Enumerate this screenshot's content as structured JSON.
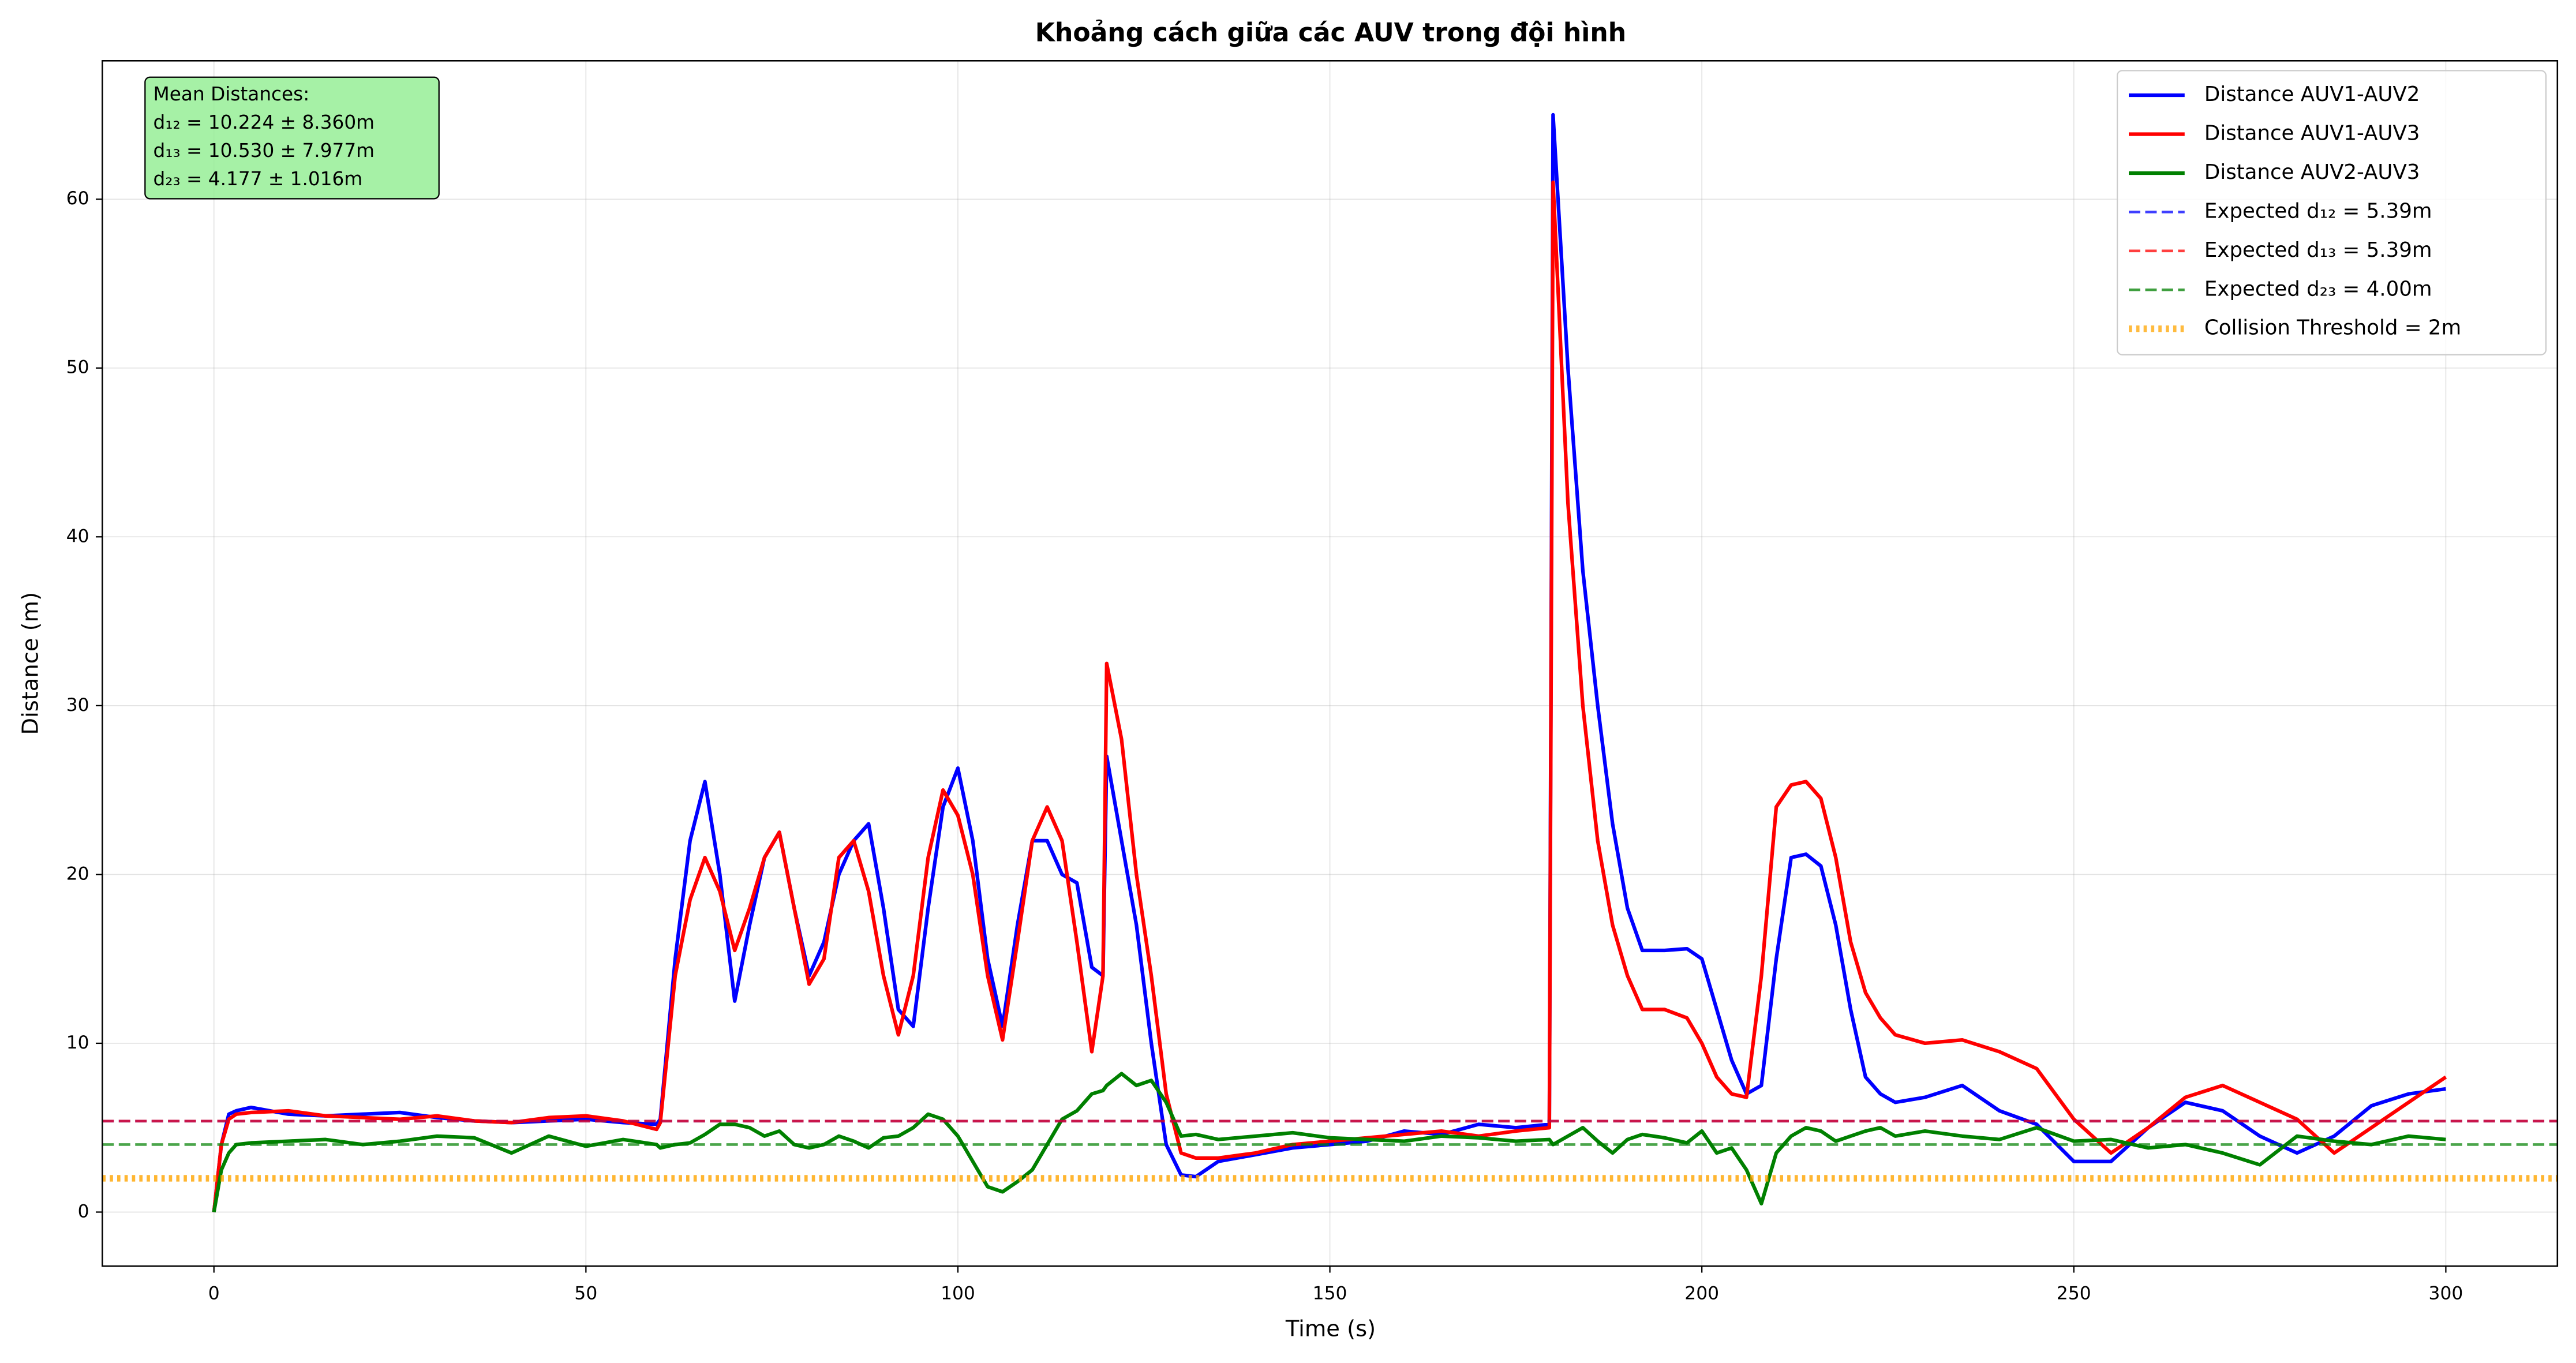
{
  "chart_data": {
    "type": "line",
    "title": "Khoảng cách giữa các AUV trong đội hình",
    "x_label": "Time (s)",
    "y_label": "Distance (m)",
    "xlim": [
      -15,
      315
    ],
    "ylim": [
      -3.2,
      68.2
    ],
    "xticks": [
      0,
      50,
      100,
      150,
      200,
      250,
      300
    ],
    "yticks": [
      0,
      10,
      20,
      30,
      40,
      50,
      60
    ],
    "grid": true,
    "legend_position": "upper-right",
    "annotation": [
      "Mean Distances:",
      "d₁₂ = 10.224 ± 8.360m",
      "d₁₃ = 10.530 ± 7.977m",
      "d₂₃ = 4.177 ± 1.016m"
    ],
    "x": [
      0,
      1,
      2,
      3,
      5,
      10,
      15,
      20,
      25,
      30,
      35,
      40,
      45,
      50,
      55,
      59.5,
      60,
      62,
      64,
      66,
      68,
      70,
      72,
      74,
      76,
      78,
      80,
      82,
      84,
      86,
      88,
      90,
      92,
      94,
      96,
      98,
      100,
      102,
      104,
      106,
      108,
      110,
      112,
      114,
      116,
      118,
      119.5,
      120,
      122,
      124,
      126,
      128,
      130,
      132,
      135,
      140,
      145,
      150,
      155,
      160,
      165,
      170,
      175,
      179.5,
      180,
      182,
      184,
      186,
      188,
      190,
      192,
      195,
      198,
      200,
      202,
      204,
      206,
      208,
      210,
      212,
      214,
      216,
      218,
      220,
      222,
      224,
      226,
      230,
      235,
      240,
      245,
      250,
      255,
      260,
      265,
      270,
      275,
      280,
      285,
      290,
      295,
      300
    ],
    "series": [
      {
        "name": "Distance AUV1-AUV2",
        "color": "#0000ff",
        "values": [
          0,
          4,
          5.8,
          6,
          6.2,
          5.8,
          5.7,
          5.8,
          5.9,
          5.6,
          5.4,
          5.3,
          5.4,
          5.5,
          5.3,
          5.2,
          5.5,
          15,
          22,
          25.5,
          20,
          12.5,
          17,
          21,
          22.5,
          18,
          14,
          16,
          20,
          22,
          23,
          18,
          12,
          11,
          18,
          24,
          26.3,
          22,
          15,
          11,
          17,
          22,
          22,
          20,
          19.5,
          14.5,
          14,
          27,
          22,
          17,
          10,
          4,
          2.2,
          2.1,
          3,
          3.4,
          3.8,
          4,
          4.2,
          4.8,
          4.6,
          5.2,
          5,
          5.2,
          65,
          50,
          38,
          30,
          23,
          18,
          15.5,
          15.5,
          15.6,
          15,
          12,
          9,
          7,
          7.5,
          15,
          21,
          21.2,
          20.5,
          17,
          12,
          8,
          7,
          6.5,
          6.8,
          7.5,
          6,
          5.2,
          3,
          3,
          5,
          6.5,
          6,
          4.5,
          3.5,
          4.5,
          6.3,
          7,
          7.3
        ]
      },
      {
        "name": "Distance AUV1-AUV3",
        "color": "#ff0000",
        "values": [
          0,
          4,
          5.5,
          5.8,
          5.9,
          6,
          5.7,
          5.6,
          5.5,
          5.7,
          5.4,
          5.3,
          5.6,
          5.7,
          5.4,
          4.9,
          5.3,
          14,
          18.5,
          21,
          19,
          15.5,
          18,
          21,
          22.5,
          18,
          13.5,
          15,
          21,
          22,
          19,
          14,
          10.5,
          14,
          21,
          25,
          23.5,
          20,
          14,
          10.2,
          16,
          22,
          24,
          22,
          16,
          9.5,
          14,
          32.5,
          28,
          20,
          14,
          7,
          3.5,
          3.2,
          3.2,
          3.5,
          4,
          4.2,
          4.4,
          4.6,
          4.8,
          4.5,
          4.8,
          5,
          61,
          42,
          30,
          22,
          17,
          14,
          12,
          12,
          11.5,
          10,
          8,
          7,
          6.8,
          14,
          24,
          25.3,
          25.5,
          24.5,
          21,
          16,
          13,
          11.5,
          10.5,
          10,
          10.2,
          9.5,
          8.5,
          5.5,
          3.5,
          5,
          6.8,
          7.5,
          6.5,
          5.5,
          3.5,
          5,
          6.5,
          8
        ]
      },
      {
        "name": "Distance AUV2-AUV3",
        "color": "#008000",
        "values": [
          0,
          2.5,
          3.5,
          4,
          4.1,
          4.2,
          4.3,
          4,
          4.2,
          4.5,
          4.4,
          3.5,
          4.5,
          3.9,
          4.3,
          4,
          3.8,
          4,
          4.1,
          4.6,
          5.2,
          5.2,
          5,
          4.5,
          4.8,
          4,
          3.8,
          4,
          4.5,
          4.2,
          3.8,
          4.4,
          4.5,
          5,
          5.8,
          5.5,
          4.5,
          3,
          1.5,
          1.2,
          1.8,
          2.5,
          4,
          5.5,
          6,
          7,
          7.2,
          7.5,
          8.2,
          7.5,
          7.8,
          6.5,
          4.5,
          4.6,
          4.3,
          4.5,
          4.7,
          4.4,
          4.3,
          4.2,
          4.5,
          4.4,
          4.2,
          4.3,
          4,
          4.5,
          5,
          4.2,
          3.5,
          4.3,
          4.6,
          4.4,
          4.1,
          4.8,
          3.5,
          3.8,
          2.5,
          0.5,
          3.5,
          4.5,
          5,
          4.8,
          4.2,
          4.5,
          4.8,
          5,
          4.5,
          4.8,
          4.5,
          4.3,
          5,
          4.2,
          4.3,
          3.8,
          4,
          3.5,
          2.8,
          4.5,
          4.2,
          4,
          4.5,
          4.3
        ]
      }
    ],
    "reference_lines": [
      {
        "name": "Expected d₁₂ = 5.39m",
        "value": 5.39,
        "color": "#0000ff",
        "style": "dashed"
      },
      {
        "name": "Expected d₁₃ = 5.39m",
        "value": 5.39,
        "color": "#ff0000",
        "style": "dashed"
      },
      {
        "name": "Expected d₂₃ = 4.00m",
        "value": 4.0,
        "color": "#008000",
        "style": "dashed"
      },
      {
        "name": "Collision Threshold = 2m",
        "value": 2,
        "color": "#ffa500",
        "style": "dotted"
      }
    ]
  }
}
